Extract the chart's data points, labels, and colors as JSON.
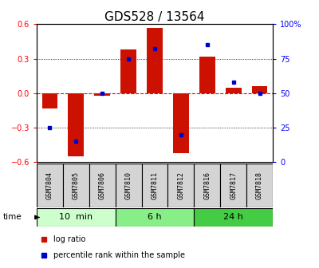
{
  "title": "GDS528 / 13564",
  "samples": [
    "GSM7804",
    "GSM7805",
    "GSM7806",
    "GSM7810",
    "GSM7811",
    "GSM7812",
    "GSM7816",
    "GSM7817",
    "GSM7818"
  ],
  "log_ratio": [
    -0.13,
    -0.55,
    -0.02,
    0.38,
    0.57,
    -0.52,
    0.32,
    0.05,
    0.06
  ],
  "percentile": [
    25,
    15,
    50,
    75,
    82,
    20,
    85,
    58,
    50
  ],
  "groups": [
    {
      "label": "10  min",
      "indices": [
        0,
        1,
        2
      ],
      "color": "#ccffcc"
    },
    {
      "label": "6 h",
      "indices": [
        3,
        4,
        5
      ],
      "color": "#88ee88"
    },
    {
      "label": "24 h",
      "indices": [
        6,
        7,
        8
      ],
      "color": "#44cc44"
    }
  ],
  "ylim": [
    -0.6,
    0.6
  ],
  "yticks_left": [
    -0.6,
    -0.3,
    0.0,
    0.3,
    0.6
  ],
  "yticks_right": [
    0,
    25,
    50,
    75,
    100
  ],
  "bar_color": "#cc1100",
  "dot_color": "#0000cc",
  "zero_line_color": "#cc1100",
  "grid_color": "#000000",
  "title_fontsize": 11,
  "tick_label_fontsize": 7,
  "group_label_fontsize": 8,
  "sample_label_fontsize": 6,
  "legend_fontsize": 7,
  "bg_color": "#ffffff",
  "label_box_color": "#d4d4d4"
}
